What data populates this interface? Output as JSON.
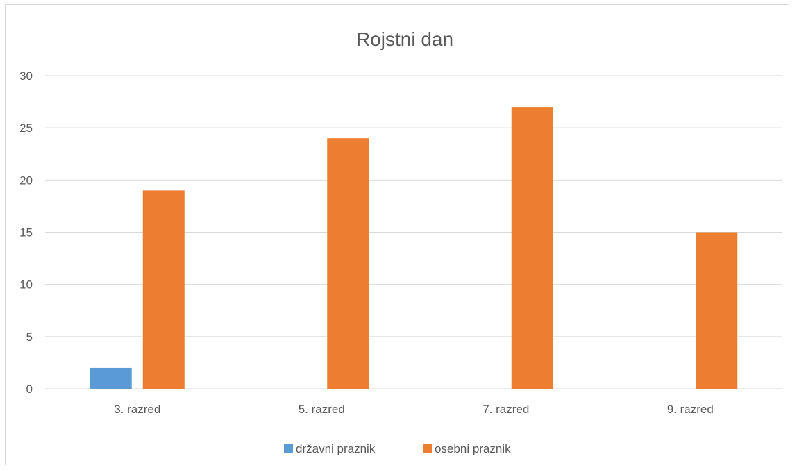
{
  "chart_data": {
    "type": "bar",
    "title": "Rojstni dan",
    "categories": [
      "3. razred",
      "5. razred",
      "7. razred",
      "9. razred"
    ],
    "series": [
      {
        "name": "državni praznik",
        "values": [
          2,
          0,
          0,
          0
        ],
        "color": "#5b9bd5"
      },
      {
        "name": "osebni praznik",
        "values": [
          19,
          24,
          27,
          15
        ],
        "color": "#ed7d31"
      }
    ],
    "yticks": [
      0,
      5,
      10,
      15,
      20,
      25,
      30
    ],
    "ylim": [
      0,
      30
    ],
    "xlabel": "",
    "ylabel": "",
    "grid": true,
    "legend_position": "bottom"
  }
}
